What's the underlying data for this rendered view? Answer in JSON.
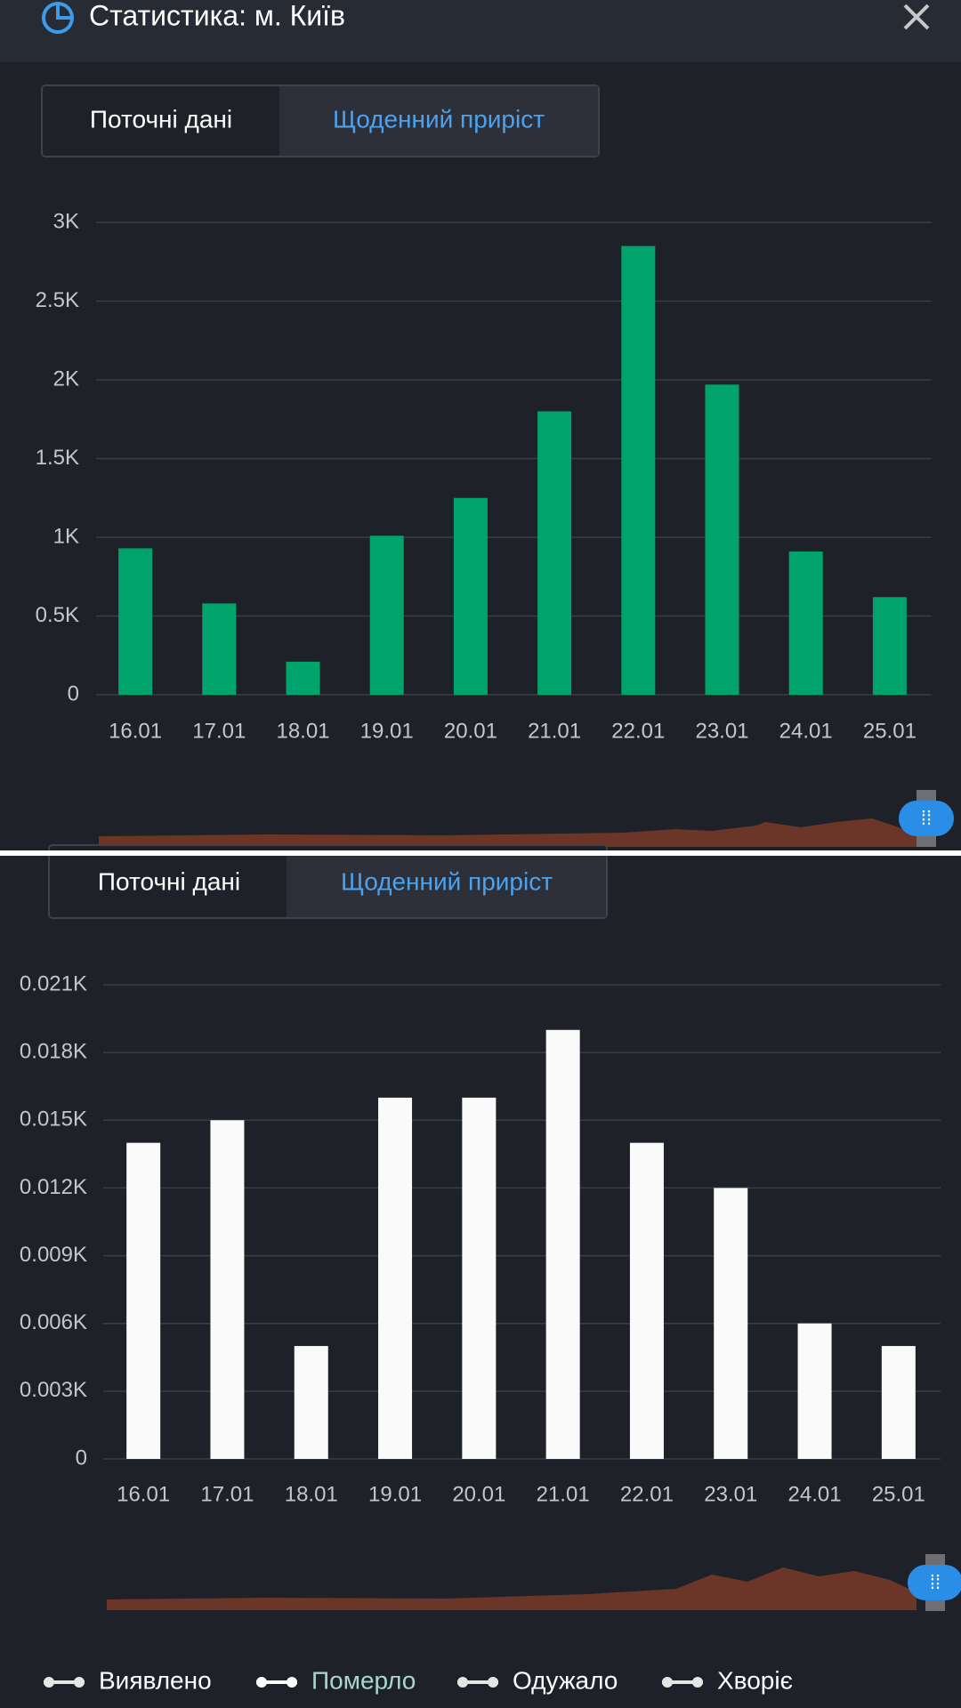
{
  "header": {
    "title": "Статистика: м. Київ"
  },
  "panels": [
    {
      "tabs": [
        "Поточні дані",
        "Щоденний приріст"
      ]
    },
    {
      "tabs": [
        "Поточні дані",
        "Щоденний приріст"
      ]
    }
  ],
  "chart_data": [
    {
      "type": "bar",
      "categories": [
        "16.01",
        "17.01",
        "18.01",
        "19.01",
        "20.01",
        "21.01",
        "22.01",
        "23.01",
        "24.01",
        "25.01"
      ],
      "values": [
        930,
        580,
        210,
        1010,
        1250,
        1800,
        2850,
        1970,
        910,
        620
      ],
      "color": "#00a36c",
      "ylim": [
        0,
        3000
      ],
      "yticks": [
        0,
        {
          "value": 500,
          "label": "0.5K"
        },
        {
          "value": 1000,
          "label": "1K"
        },
        {
          "value": 1500,
          "label": "1.5K"
        },
        {
          "value": 2000,
          "label": "2K"
        },
        {
          "value": 2500,
          "label": "2.5K"
        },
        {
          "value": 3000,
          "label": "3K"
        }
      ],
      "grid": true
    },
    {
      "type": "bar",
      "categories": [
        "16.01",
        "17.01",
        "18.01",
        "19.01",
        "20.01",
        "21.01",
        "22.01",
        "23.01",
        "24.01",
        "25.01"
      ],
      "values": [
        14,
        15,
        5,
        16,
        16,
        19,
        14,
        12,
        6,
        5
      ],
      "color": "#fafafa",
      "ylim": [
        0,
        21
      ],
      "yticks": [
        0,
        {
          "value": 3,
          "label": "0.003K"
        },
        {
          "value": 6,
          "label": "0.006K"
        },
        {
          "value": 9,
          "label": "0.009K"
        },
        {
          "value": 12,
          "label": "0.012K"
        },
        {
          "value": 15,
          "label": "0.015K"
        },
        {
          "value": 18,
          "label": "0.018K"
        },
        {
          "value": 21,
          "label": "0.021K"
        }
      ],
      "grid": true
    }
  ],
  "legend": [
    "Виявлено",
    "Померло",
    "Одужало",
    "Хворіє"
  ]
}
